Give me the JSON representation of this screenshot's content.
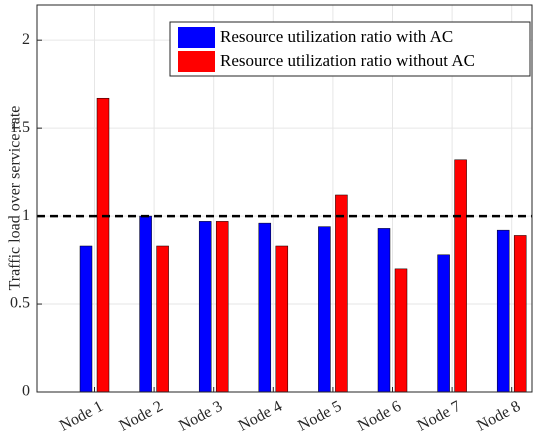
{
  "chart_data": {
    "type": "bar",
    "y_label": "Traffic load over service rate",
    "categories": [
      "Node 1",
      "Node 2",
      "Node 3",
      "Node 4",
      "Node 5",
      "Node 6",
      "Node 7",
      "Node 8"
    ],
    "series": [
      {
        "name": "Resource utilization ratio with AC",
        "color": "#0000ff",
        "values": [
          0.83,
          1.0,
          0.97,
          0.96,
          0.94,
          0.93,
          0.78,
          0.92
        ]
      },
      {
        "name": "Resource utilization ratio without AC",
        "color": "#ff0000",
        "values": [
          1.67,
          0.83,
          0.97,
          0.83,
          1.12,
          0.7,
          1.32,
          0.89
        ]
      }
    ],
    "reference_line": 1,
    "ylim": [
      0,
      2.2
    ],
    "yticks": [
      0,
      0.5,
      1,
      1.5,
      2
    ],
    "grid": true,
    "legend": "upper right"
  }
}
